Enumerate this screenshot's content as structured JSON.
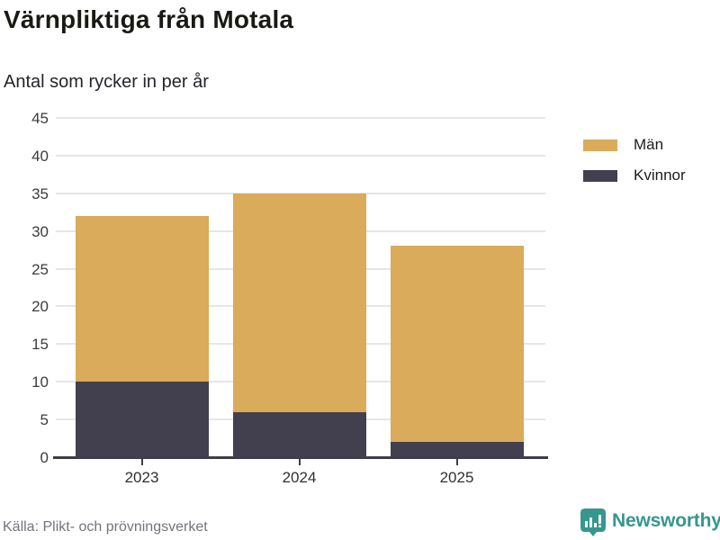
{
  "header": {
    "title": "Värnpliktiga från Motala",
    "subtitle": "Antal som rycker in per år"
  },
  "chart_data": {
    "type": "bar",
    "stacked": true,
    "title": "Värnpliktiga från Motala",
    "subtitle": "Antal som rycker in per år",
    "categories": [
      "2023",
      "2024",
      "2025"
    ],
    "series": [
      {
        "name": "Män",
        "color": "#d9ab5b",
        "values": [
          22,
          29,
          26
        ]
      },
      {
        "name": "Kvinnor",
        "color": "#42404e",
        "values": [
          10,
          6,
          2
        ]
      }
    ],
    "stack_totals": [
      32,
      35,
      28
    ],
    "stack_order_bottom_to_top": [
      "Kvinnor",
      "Män"
    ],
    "ylim": [
      0,
      45
    ],
    "yticks": [
      0,
      5,
      10,
      15,
      20,
      25,
      30,
      35,
      40,
      45
    ],
    "xlabel": "",
    "ylabel": "",
    "grid": true,
    "legend_position": "right-top"
  },
  "footer": {
    "source": "Källa: Plikt- och prövningsverket",
    "brand_name": "Newsworthy"
  },
  "colors": {
    "men_bar": "#d9ab5b",
    "women_bar": "#42404e",
    "gridline": "#e6e6e6",
    "axis_line": "#3e3c47",
    "title_text": "#1a1a14",
    "tick_text": "#3c3c3c",
    "source_text": "#73737b",
    "brand_teal": "#35978e",
    "background": "#ffffff"
  }
}
